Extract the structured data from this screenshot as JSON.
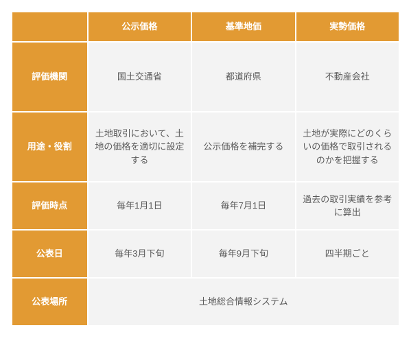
{
  "colors": {
    "header_bg": "#e29a33",
    "header_fg": "#ffffff",
    "data_bg": "#f3f3f3",
    "data_fg": "#595959"
  },
  "columns": [
    "公示価格",
    "基準地価",
    "実勢価格"
  ],
  "rows": [
    {
      "label": "評価機関",
      "cells": [
        "国土交通省",
        "都道府県",
        "不動産会社"
      ],
      "height": "tall"
    },
    {
      "label": "用途・役割",
      "cells": [
        "土地取引において、土地の価格を適切に設定する",
        "公示価格を補完する",
        "土地が実際にどのくらいの価格で取引されるのかを把握する"
      ],
      "height": "tall"
    },
    {
      "label": "評価時点",
      "cells": [
        "毎年1月1日",
        "毎年7月1日",
        "過去の取引実績を参考に算出"
      ],
      "height": "med"
    },
    {
      "label": "公表日",
      "cells": [
        "毎年3月下旬",
        "毎年9月下旬",
        "四半期ごと"
      ],
      "height": "med"
    },
    {
      "label": "公表場所",
      "merged": "土地総合情報システム",
      "height": "med"
    }
  ]
}
